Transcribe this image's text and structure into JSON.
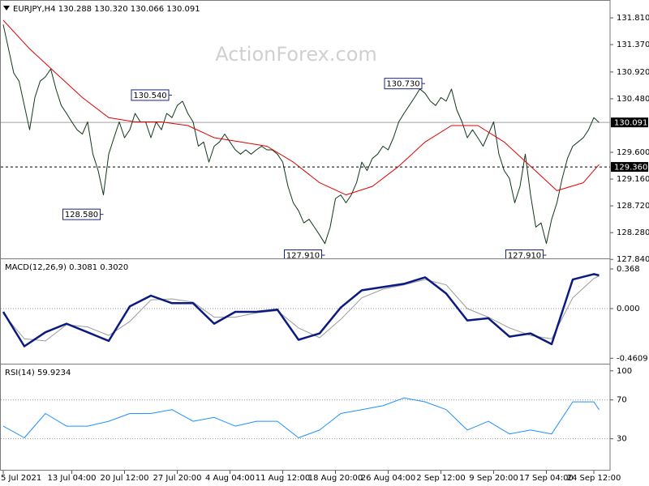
{
  "chart_data": [
    {
      "type": "line",
      "title": "EURJPY,H4 130.288 130.320 130.066 130.091",
      "watermark": "ActionForex.com",
      "xlim": [
        0,
        115
      ],
      "ylim": [
        127.83,
        132.05
      ],
      "yticks": [
        {
          "value": 131.81,
          "label": "131.810"
        },
        {
          "value": 131.37,
          "label": "131.370"
        },
        {
          "value": 130.92,
          "label": "130.920"
        },
        {
          "value": 130.48,
          "label": "130.480"
        },
        {
          "value": 129.6,
          "label": "129.600"
        },
        {
          "value": 129.16,
          "label": "129.160"
        },
        {
          "value": 128.72,
          "label": "128.720"
        },
        {
          "value": 128.28,
          "label": "128.280"
        },
        {
          "value": 127.84,
          "label": "127.840"
        }
      ],
      "series": [
        {
          "color": "#12381a",
          "values": [
            131.7,
            131.3,
            130.9,
            130.77,
            130.37,
            129.97,
            130.5,
            130.77,
            130.84,
            130.97,
            130.64,
            130.37,
            130.24,
            130.1,
            129.97,
            129.9,
            130.1,
            129.57,
            129.3,
            128.9,
            129.57,
            129.84,
            130.1,
            129.84,
            129.97,
            130.24,
            130.1,
            130.1,
            129.84,
            130.1,
            129.97,
            130.24,
            130.17,
            130.37,
            130.44,
            130.24,
            130.1,
            129.7,
            129.77,
            129.44,
            129.7,
            129.77,
            129.9,
            129.77,
            129.64,
            129.57,
            129.64,
            129.57,
            129.64,
            129.7,
            129.64,
            129.64,
            129.57,
            129.44,
            129.04,
            128.77,
            128.64,
            128.44,
            128.5,
            128.37,
            128.24,
            128.1,
            128.37,
            128.84,
            128.9,
            128.77,
            128.9,
            129.1,
            129.44,
            129.3,
            129.5,
            129.57,
            129.7,
            129.64,
            129.84,
            130.1,
            130.24,
            130.37,
            130.5,
            130.64,
            130.57,
            130.44,
            130.37,
            130.5,
            130.44,
            130.64,
            130.3,
            130.1,
            129.84,
            129.97,
            129.84,
            129.7,
            129.9,
            130.1,
            129.57,
            129.3,
            129.17,
            128.77,
            129.04,
            129.57,
            128.9,
            128.37,
            128.44,
            128.1,
            128.5,
            128.77,
            129.17,
            129.5,
            129.7,
            129.77,
            129.84,
            129.97,
            130.17,
            130.09
          ]
        },
        {
          "color": "#e00000",
          "x": [
            0,
            5,
            10,
            15,
            20,
            25,
            30,
            35,
            40,
            45,
            50,
            55,
            60,
            65,
            70,
            75,
            80,
            85,
            90,
            95,
            100,
            105,
            110,
            113
          ],
          "values": [
            131.77,
            131.3,
            130.9,
            130.5,
            130.17,
            130.1,
            130.1,
            130.04,
            129.84,
            129.77,
            129.7,
            129.44,
            129.1,
            128.9,
            129.04,
            129.37,
            129.77,
            130.04,
            130.04,
            129.77,
            129.37,
            128.97,
            129.1,
            129.4
          ]
        }
      ],
      "hlines": [
        {
          "value": 130.091,
          "label": "130.091",
          "style": "solid",
          "color": "#a0a0a0"
        },
        {
          "value": 129.36,
          "label": "129.360",
          "style": "dashed",
          "color": "#000000"
        }
      ],
      "annotations": [
        {
          "x": 32,
          "value": 130.54,
          "label": "130.540"
        },
        {
          "x": 19,
          "value": 128.58,
          "label": "128.580"
        },
        {
          "x": 61,
          "value": 127.91,
          "label": "127.910"
        },
        {
          "x": 80,
          "value": 130.73,
          "label": "130.730"
        },
        {
          "x": 103,
          "value": 127.91,
          "label": "127.910"
        }
      ]
    },
    {
      "type": "line",
      "title": "MACD(12,26,9) 0.3081 0.3020",
      "xlim": [
        0,
        115
      ],
      "ylim": [
        -0.519,
        0.436
      ],
      "yticks": [
        0.368,
        {
          "value": 0,
          "label": "0.000"
        },
        -0.4609
      ],
      "levels": [
        0
      ],
      "series": [
        {
          "color": "#9a9a9a",
          "x": [
            0,
            4,
            8,
            12,
            16,
            20,
            24,
            28,
            32,
            36,
            40,
            44,
            48,
            52,
            56,
            60,
            64,
            68,
            72,
            76,
            80,
            84,
            88,
            92,
            96,
            100,
            104,
            108,
            112,
            113
          ],
          "values": [
            -0.05,
            -0.28,
            -0.3,
            -0.15,
            -0.17,
            -0.25,
            -0.12,
            0.08,
            0.09,
            0.06,
            -0.08,
            -0.08,
            -0.04,
            -0.02,
            -0.18,
            -0.27,
            -0.1,
            0.1,
            0.18,
            0.22,
            0.27,
            0.22,
            0.0,
            -0.08,
            -0.18,
            -0.25,
            -0.28,
            0.1,
            0.28,
            0.302
          ]
        },
        {
          "color": "#0b1a80",
          "x": [
            0,
            4,
            8,
            12,
            16,
            20,
            24,
            28,
            32,
            36,
            40,
            44,
            48,
            52,
            56,
            60,
            64,
            68,
            72,
            76,
            80,
            84,
            88,
            92,
            96,
            100,
            104,
            108,
            112,
            113
          ],
          "values": [
            -0.03,
            -0.35,
            -0.22,
            -0.14,
            -0.22,
            -0.3,
            0.02,
            0.12,
            0.05,
            0.05,
            -0.14,
            -0.03,
            -0.03,
            -0.01,
            -0.29,
            -0.23,
            0.01,
            0.17,
            0.2,
            0.23,
            0.29,
            0.14,
            -0.11,
            -0.09,
            -0.26,
            -0.23,
            -0.33,
            0.27,
            0.32,
            0.3081
          ]
        }
      ]
    },
    {
      "type": "line",
      "title": "RSI(14) 59.9234",
      "xlim": [
        0,
        115
      ],
      "ylim": [
        -2,
        104
      ],
      "yticks": [
        100,
        70,
        30
      ],
      "levels": [
        70,
        30
      ],
      "series": [
        {
          "color": "#1e90ff",
          "x": [
            0,
            4,
            8,
            12,
            16,
            20,
            24,
            28,
            32,
            36,
            40,
            44,
            48,
            52,
            56,
            60,
            64,
            68,
            72,
            76,
            80,
            84,
            88,
            92,
            96,
            100,
            104,
            108,
            112,
            113
          ],
          "values": [
            43,
            31,
            56,
            43,
            43,
            48,
            56,
            56,
            60,
            48,
            52,
            43,
            48,
            48,
            31,
            39,
            56,
            60,
            64,
            72,
            68,
            60,
            39,
            48,
            35,
            39,
            35,
            68,
            68,
            59.92
          ]
        }
      ],
      "xticks": [
        {
          "value": 0,
          "label": "5 Jul 2021"
        },
        {
          "value": 13,
          "label": "13 Jul 04:00"
        },
        {
          "value": 23,
          "label": "20 Jul 12:00"
        },
        {
          "value": 33,
          "label": "27 Jul 20:00"
        },
        {
          "value": 43,
          "label": "4 Aug 04:00"
        },
        {
          "value": 53,
          "label": "11 Aug 12:00"
        },
        {
          "value": 63,
          "label": "18 Aug 20:00"
        },
        {
          "value": 73,
          "label": "26 Aug 04:00"
        },
        {
          "value": 83,
          "label": "2 Sep 12:00"
        },
        {
          "value": 93,
          "label": "9 Sep 20:00"
        },
        {
          "value": 103,
          "label": "17 Sep 04:00"
        },
        {
          "value": 112,
          "label": "24 Sep 12:00"
        }
      ]
    }
  ]
}
